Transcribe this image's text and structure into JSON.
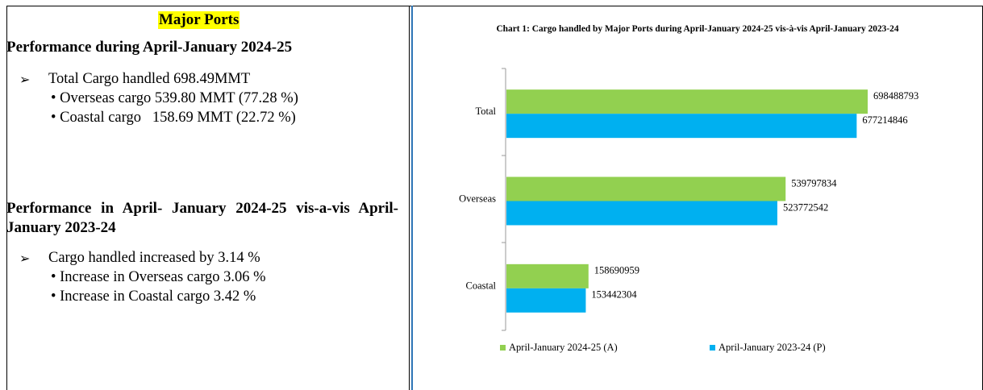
{
  "left": {
    "title": "Major Ports",
    "heading1": "Performance during April-January 2024-25",
    "point1": "Total Cargo handled 698.49MMT",
    "point1_subs": [
      "Overseas cargo 539.80 MMT (77.28 %)",
      "Coastal cargo   158.69 MMT (22.72 %)"
    ],
    "heading2": "Performance in April- January 2024-25 vis-a-vis April- January 2023-24",
    "point2": "Cargo handled increased by 3.14 %",
    "point2_subs": [
      "Increase in Overseas cargo 3.06 %",
      "Increase in Coastal cargo 3.42 %"
    ]
  },
  "chart_data": {
    "type": "hbar",
    "title": "Chart 1: Cargo handled by Major Ports during April-January 2024-25 vis-à-vis April-January 2023-24",
    "categories": [
      "Total",
      "Overseas",
      "Coastal"
    ],
    "series": [
      {
        "name": "April-January 2024-25 (A)",
        "color": "#92d050",
        "values": [
          698488793,
          539797834,
          158690959
        ]
      },
      {
        "name": "April-January 2023-24 (P)",
        "color": "#00b0f0",
        "values": [
          677214846,
          523772542,
          153442304
        ]
      }
    ],
    "legend": "bottom"
  }
}
